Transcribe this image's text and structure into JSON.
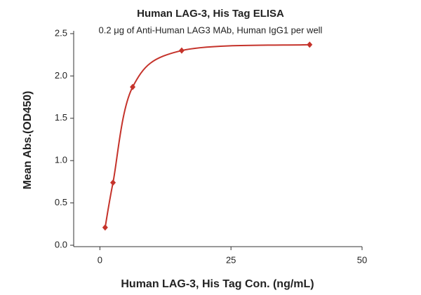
{
  "chart_data": {
    "type": "scatter",
    "title": "Human LAG-3, His Tag ELISA",
    "subtitle": "0.2 μg of Anti-Human LAG3 MAb, Human IgG1 per well",
    "x_label": "Human LAG-3, His Tag Con. (ng/mL)",
    "y_label": "Mean Abs.(OD450)",
    "series": [
      {
        "color": "#c5332b",
        "x": [
          1,
          2.5,
          6.25,
          15.6,
          40
        ],
        "values": [
          0.21,
          0.74,
          1.87,
          2.3,
          2.37
        ]
      }
    ],
    "xlim": [
      -5,
      50
    ],
    "xticks": [
      0,
      25,
      50
    ],
    "ylim": [
      0,
      2.5
    ],
    "yticks": [
      {
        "value": 0,
        "label": "0.0"
      },
      0.5,
      {
        "value": 1,
        "label": "1.0"
      },
      1.5,
      {
        "value": 2,
        "label": "2.0"
      },
      2.5
    ],
    "fit_line": true
  }
}
